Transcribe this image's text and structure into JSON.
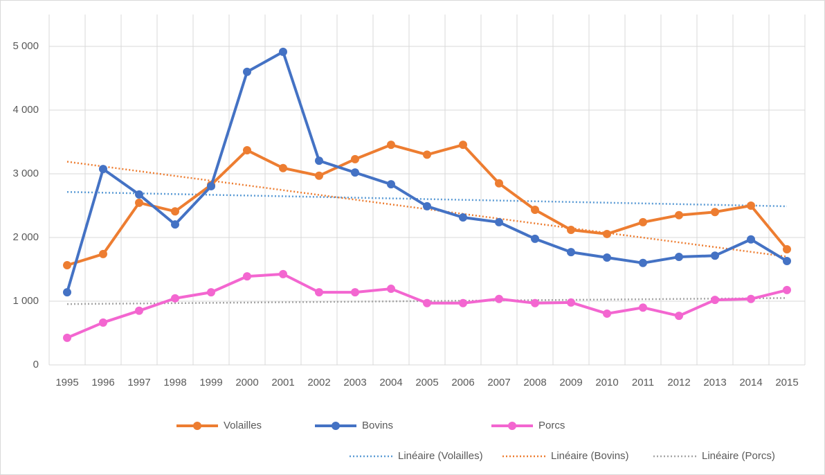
{
  "chart_data": {
    "type": "line",
    "categories": [
      "1995",
      "1996",
      "1997",
      "1998",
      "1999",
      "2000",
      "2001",
      "2002",
      "2003",
      "2004",
      "2005",
      "2006",
      "2007",
      "2008",
      "2009",
      "2010",
      "2011",
      "2012",
      "2013",
      "2014",
      "2015"
    ],
    "series": [
      {
        "name": "Volailles",
        "color": "#ed7d31",
        "values": [
          1565,
          1740,
          2545,
          2410,
          2825,
          3370,
          3090,
          2970,
          3230,
          3455,
          3300,
          3455,
          2850,
          2435,
          2120,
          2055,
          2240,
          2350,
          2400,
          2500,
          1815
        ]
      },
      {
        "name": "Bovins",
        "color": "#4472c4",
        "values": [
          1140,
          3075,
          2675,
          2205,
          2805,
          4600,
          4915,
          3205,
          3020,
          2835,
          2490,
          2315,
          2240,
          1980,
          1770,
          1685,
          1600,
          1695,
          1715,
          1970,
          1630
        ]
      },
      {
        "name": "Porcs",
        "color": "#f366d0",
        "values": [
          425,
          665,
          850,
          1045,
          1140,
          1390,
          1425,
          1140,
          1140,
          1195,
          970,
          970,
          1035,
          970,
          980,
          805,
          900,
          770,
          1020,
          1035,
          1175
        ]
      }
    ],
    "trendlines": [
      {
        "name": "Linéaire (Volailles)",
        "color": "#5b9bd5",
        "values": [
          2715,
          2490
        ]
      },
      {
        "name": "Linéaire (Bovins)",
        "color": "#ed7d31",
        "values": [
          3190,
          1700
        ]
      },
      {
        "name": "Linéaire (Porcs)",
        "color": "#a5a5a5",
        "values": [
          955,
          1050
        ]
      }
    ],
    "ylim": [
      0,
      5500
    ],
    "yticks": [
      0,
      {
        "value": 1000,
        "label": "1 000"
      },
      {
        "value": 2000,
        "label": "2 000"
      },
      {
        "value": 3000,
        "label": "3 000"
      },
      {
        "value": 4000,
        "label": "4 000"
      },
      {
        "value": 5000,
        "label": "5 000"
      }
    ],
    "grid": true,
    "legend": "bottom"
  }
}
